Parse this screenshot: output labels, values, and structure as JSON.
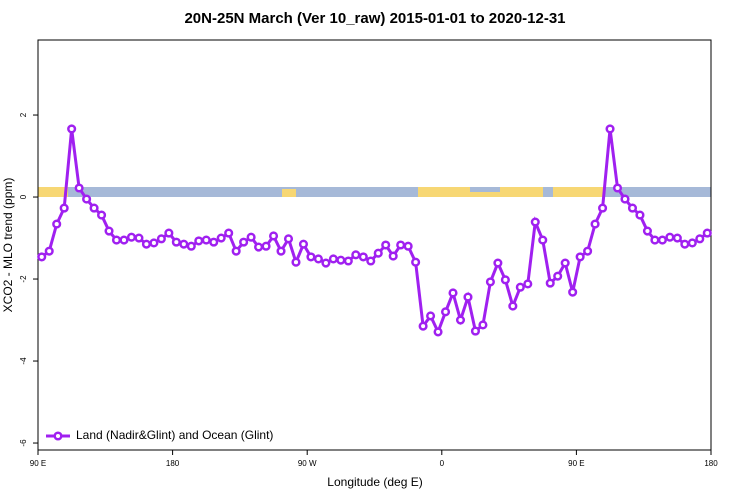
{
  "chart_data": {
    "type": "line",
    "title": "20N-25N March (Ver 10_raw)   2015-01-01 to 2020-12-31",
    "x_label": "Longitude (deg E)",
    "y_label": "XCO2 - MLO trend (ppm)",
    "x": [
      92.5,
      97.5,
      102.5,
      107.5,
      112.5,
      117.5,
      122.5,
      127.5,
      132.5,
      137.5,
      142.5,
      147.5,
      152.5,
      157.5,
      162.5,
      167.5,
      172.5,
      177.5,
      182.5,
      187.5,
      192.5,
      197.5,
      202.5,
      207.5,
      212.5,
      217.5,
      222.5,
      227.5,
      232.5,
      237.5,
      242.5,
      247.5,
      252.5,
      257.5,
      262.5,
      267.5,
      272.5,
      277.5,
      282.5,
      287.5,
      292.5,
      297.5,
      302.5,
      307.5,
      312.5,
      317.5,
      322.5,
      327.5,
      332.5,
      337.5,
      342.5,
      347.5,
      352.5,
      357.5,
      362.5,
      367.5,
      372.5,
      377.5,
      382.5,
      387.5,
      392.5,
      397.5,
      402.5,
      407.5,
      412.5,
      417.5,
      422.5,
      427.5,
      432.5,
      437.5,
      442.5,
      447.5,
      452.5,
      457.5,
      462.5,
      467.5,
      472.5,
      477.5,
      482.5,
      487.5,
      492.5,
      497.5,
      502.5,
      507.5,
      512.5,
      517.5,
      522.5,
      527.5,
      532.5,
      537.5
    ],
    "series": [
      {
        "name": "Land (Nadir&Glint) and Ocean (Glint)",
        "color": "#a020f0",
        "values": [
          -1.46,
          -1.32,
          -0.66,
          -0.27,
          1.66,
          0.22,
          -0.05,
          -0.27,
          -0.44,
          -0.83,
          -1.05,
          -1.05,
          -0.98,
          -1.0,
          -1.15,
          -1.12,
          -1.02,
          -0.88,
          -1.1,
          -1.15,
          -1.2,
          -1.07,
          -1.05,
          -1.1,
          -1.0,
          -0.88,
          -1.32,
          -1.1,
          -0.98,
          -1.22,
          -1.2,
          -0.95,
          -1.32,
          -1.02,
          -1.59,
          -1.15,
          -1.46,
          -1.51,
          -1.61,
          -1.51,
          -1.54,
          -1.56,
          -1.41,
          -1.46,
          -1.56,
          -1.37,
          -1.17,
          -1.44,
          -1.17,
          -1.2,
          -1.59,
          -3.15,
          -2.9,
          -3.29,
          -2.8,
          -2.34,
          -3.0,
          -2.44,
          -3.27,
          -3.12,
          -2.07,
          -1.61,
          -2.02,
          -2.66,
          -2.2,
          -2.12,
          -0.61,
          -1.05,
          -2.1,
          -1.93,
          -1.61,
          -2.32,
          -1.46,
          -1.32,
          -0.66,
          -0.27,
          1.66,
          0.22,
          -0.05,
          -0.27,
          -0.44,
          -0.83,
          -1.05,
          -1.05,
          -0.98,
          -1.0,
          -1.15,
          -1.12,
          -1.02,
          -0.88
        ]
      }
    ],
    "xlim": [
      90,
      540
    ],
    "xticks": [
      {
        "value": 90,
        "label": "90 E"
      },
      {
        "value": 180,
        "label": "180"
      },
      {
        "value": 270,
        "label": "90 W"
      },
      {
        "value": 360,
        "label": "0"
      },
      {
        "value": 450,
        "label": "90 E"
      },
      {
        "value": 540,
        "label": "180"
      }
    ],
    "ylim": [
      -6.17,
      3.83
    ],
    "yticks": [
      -6,
      -4,
      -2,
      0,
      2
    ],
    "grid": false,
    "legend": "bottom-left"
  }
}
